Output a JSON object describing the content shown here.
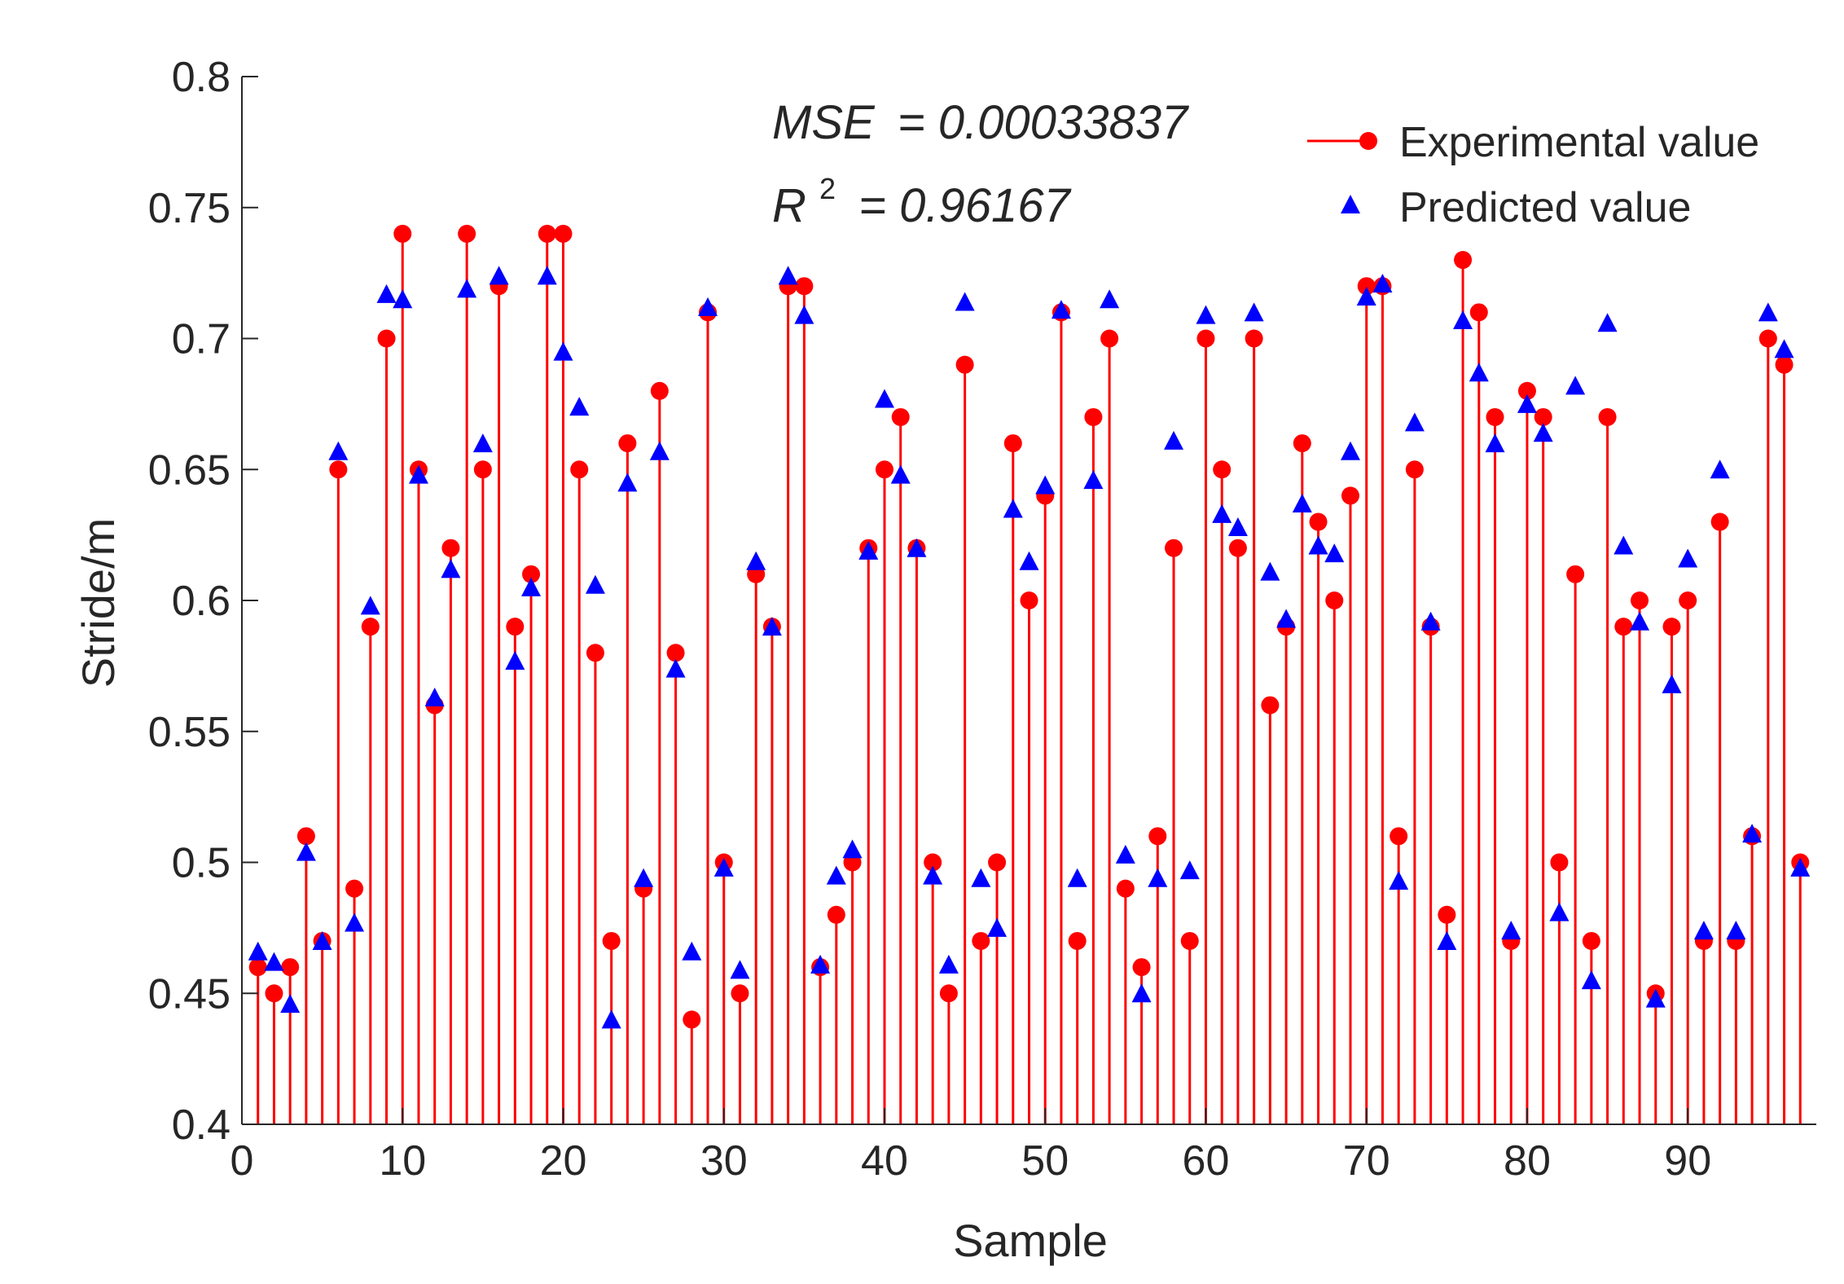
{
  "chart_data": {
    "type": "scatter",
    "xlabel": "Sample",
    "ylabel": "Stride/m",
    "xlim": [
      0,
      98
    ],
    "ylim": [
      0.4,
      0.8
    ],
    "xticks": [
      0,
      10,
      20,
      30,
      40,
      50,
      60,
      70,
      80,
      90
    ],
    "yticks": [
      0.4,
      0.45,
      0.5,
      0.55,
      0.6,
      0.65,
      0.7,
      0.75,
      0.8
    ],
    "ytick_labels": [
      "0.4",
      "0.45",
      "0.5",
      "0.55",
      "0.6",
      "0.65",
      "0.7",
      "0.75",
      "0.8"
    ],
    "grid": false,
    "legend_position": "top-right",
    "annotations": {
      "mse_label": "MSE",
      "mse_value": "= 0.00033837",
      "r2_label": "R",
      "r2_exponent": "2",
      "r2_value": "= 0.96167"
    },
    "x": [
      1,
      2,
      3,
      4,
      5,
      6,
      7,
      8,
      9,
      10,
      11,
      12,
      13,
      14,
      15,
      16,
      17,
      18,
      19,
      20,
      21,
      22,
      23,
      24,
      25,
      26,
      27,
      28,
      29,
      30,
      31,
      32,
      33,
      34,
      35,
      36,
      37,
      38,
      39,
      40,
      41,
      42,
      43,
      44,
      45,
      46,
      47,
      48,
      49,
      50,
      51,
      52,
      53,
      54,
      55,
      56,
      57,
      58,
      59,
      60,
      61,
      62,
      63,
      64,
      65,
      66,
      67,
      68,
      69,
      70,
      71,
      72,
      73,
      74,
      75,
      76,
      77,
      78,
      79,
      80,
      81,
      82,
      83,
      84,
      85,
      86,
      87,
      88,
      89,
      90,
      91,
      92,
      93,
      94,
      95,
      96,
      97
    ],
    "series": [
      {
        "name": "Experimental value",
        "style": "stem",
        "color": "#ff0000",
        "values": [
          0.46,
          0.45,
          0.46,
          0.51,
          0.47,
          0.65,
          0.49,
          0.59,
          0.7,
          0.74,
          0.65,
          0.56,
          0.62,
          0.74,
          0.65,
          0.72,
          0.59,
          0.61,
          0.74,
          0.74,
          0.65,
          0.58,
          0.47,
          0.66,
          0.49,
          0.68,
          0.58,
          0.44,
          0.71,
          0.5,
          0.45,
          0.61,
          0.59,
          0.72,
          0.72,
          0.46,
          0.48,
          0.5,
          0.62,
          0.65,
          0.67,
          0.62,
          0.5,
          0.45,
          0.69,
          0.47,
          0.5,
          0.66,
          0.6,
          0.64,
          0.71,
          0.47,
          0.67,
          0.7,
          0.49,
          0.46,
          0.51,
          0.62,
          0.47,
          0.7,
          0.65,
          0.62,
          0.7,
          0.56,
          0.59,
          0.66,
          0.63,
          0.6,
          0.64,
          0.72,
          0.72,
          0.51,
          0.65,
          0.59,
          0.48,
          0.73,
          0.71,
          0.67,
          0.47,
          0.68,
          0.67,
          0.5,
          0.61,
          0.47,
          0.67,
          0.59,
          0.6,
          0.45,
          0.59,
          0.6,
          0.47,
          0.63,
          0.47,
          0.51,
          0.7,
          0.69,
          0.5
        ]
      },
      {
        "name": "Predicted value",
        "style": "triangle",
        "color": "#0000ff",
        "values": [
          0.466,
          0.462,
          0.446,
          0.504,
          0.47,
          0.657,
          0.477,
          0.598,
          0.717,
          0.715,
          0.648,
          0.563,
          0.612,
          0.719,
          0.66,
          0.724,
          0.577,
          0.605,
          0.724,
          0.695,
          0.674,
          0.606,
          0.44,
          0.645,
          0.494,
          0.657,
          0.574,
          0.466,
          0.712,
          0.498,
          0.459,
          0.615,
          0.59,
          0.724,
          0.709,
          0.461,
          0.495,
          0.505,
          0.619,
          0.677,
          0.648,
          0.62,
          0.495,
          0.461,
          0.714,
          0.494,
          0.475,
          0.635,
          0.615,
          0.644,
          0.711,
          0.494,
          0.646,
          0.715,
          0.503,
          0.45,
          0.494,
          0.661,
          0.497,
          0.709,
          0.633,
          0.628,
          0.71,
          0.611,
          0.593,
          0.637,
          0.621,
          0.618,
          0.657,
          0.716,
          0.721,
          0.493,
          0.668,
          0.592,
          0.47,
          0.707,
          0.687,
          0.66,
          0.474,
          0.675,
          0.664,
          0.481,
          0.682,
          0.455,
          0.706,
          0.621,
          0.592,
          0.448,
          0.568,
          0.616,
          0.474,
          0.65,
          0.474,
          0.511,
          0.71,
          0.696,
          0.498
        ]
      }
    ]
  }
}
